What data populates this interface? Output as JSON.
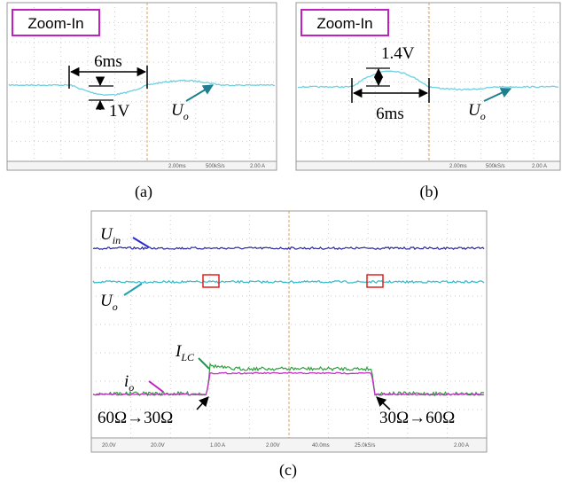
{
  "panels": [
    {
      "caption": "(a)",
      "zoom_label": "Zoom-In",
      "time_label": "6ms",
      "volt_label": "1V",
      "trace_label": {
        "main": "U",
        "sub": "o"
      },
      "status": [
        "2.00ms",
        "500kS/s",
        "2.00 A"
      ]
    },
    {
      "caption": "(b)",
      "zoom_label": "Zoom-In",
      "time_label": "6ms",
      "volt_label": "1.4V",
      "trace_label": {
        "main": "U",
        "sub": "o"
      },
      "status": [
        "2.00ms",
        "500kS/s",
        "2.00 A"
      ]
    },
    {
      "caption": "(c)",
      "trace_labels": [
        {
          "main": "U",
          "sub": "in"
        },
        {
          "main": "U",
          "sub": "o"
        },
        {
          "main": "I",
          "sub": "LC"
        },
        {
          "main": "i",
          "sub": "o"
        }
      ],
      "annotations": [
        "60Ω→30Ω",
        "30Ω→60Ω"
      ],
      "status": [
        "20.0V",
        "20.0V",
        "1.00 A",
        "2.00V",
        "40.0ms",
        "25.0kS/s",
        "2.00 A"
      ]
    }
  ]
}
